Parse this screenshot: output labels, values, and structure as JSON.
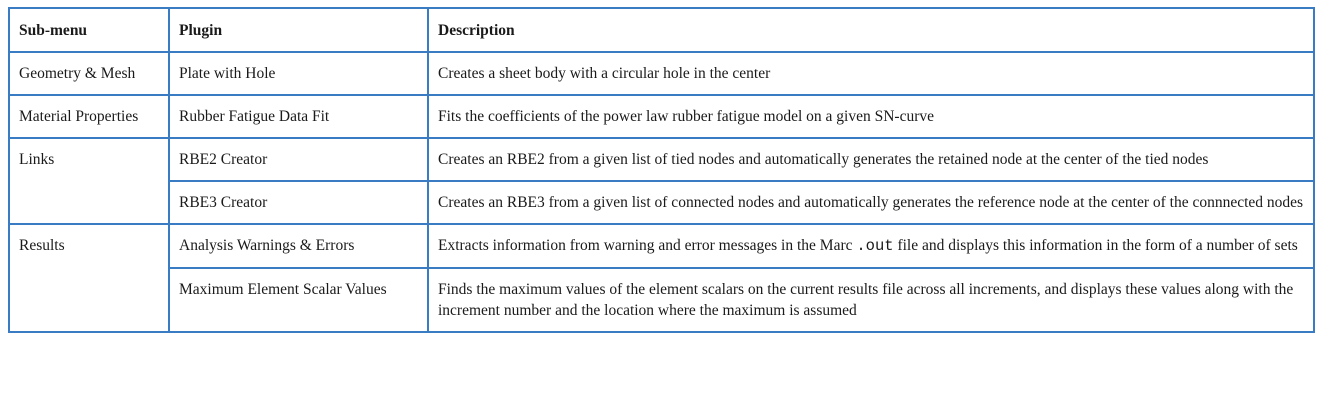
{
  "headers": {
    "submenu": "Sub-menu",
    "plugin": "Plugin",
    "description": "Description"
  },
  "rows": {
    "geometry": {
      "submenu": "Geometry & Mesh",
      "plugin": "Plate with Hole",
      "description": "Creates a sheet body with a circular hole in the center"
    },
    "material": {
      "submenu": "Material Properties",
      "plugin": "Rubber Fatigue Data Fit",
      "description": "Fits the coefficients of the power law rubber fatigue model on a given SN-curve"
    },
    "links": {
      "submenu": "Links",
      "rbe2": {
        "plugin": "RBE2 Creator",
        "description": "Creates an RBE2 from a given list of tied nodes and automatically generates the retained node at the center of the tied nodes"
      },
      "rbe3": {
        "plugin": "RBE3 Creator",
        "description": "Creates an RBE3 from a given list of connected nodes and automatically generates the reference node at the center of the connnected nodes"
      }
    },
    "results": {
      "submenu": "Results",
      "warnings": {
        "plugin": "Analysis Warnings & Errors",
        "description_before": "Extracts information from warning and error messages in the Marc ",
        "description_code": ".out",
        "description_after": " file and displays this information in the form of a number of sets"
      },
      "scalars": {
        "plugin": "Maximum Element Scalar Values",
        "description": "Finds the maximum values of the element scalars on the current results file across all increments, and displays these values along with the increment number and the location where the maximum is assumed"
      }
    }
  }
}
